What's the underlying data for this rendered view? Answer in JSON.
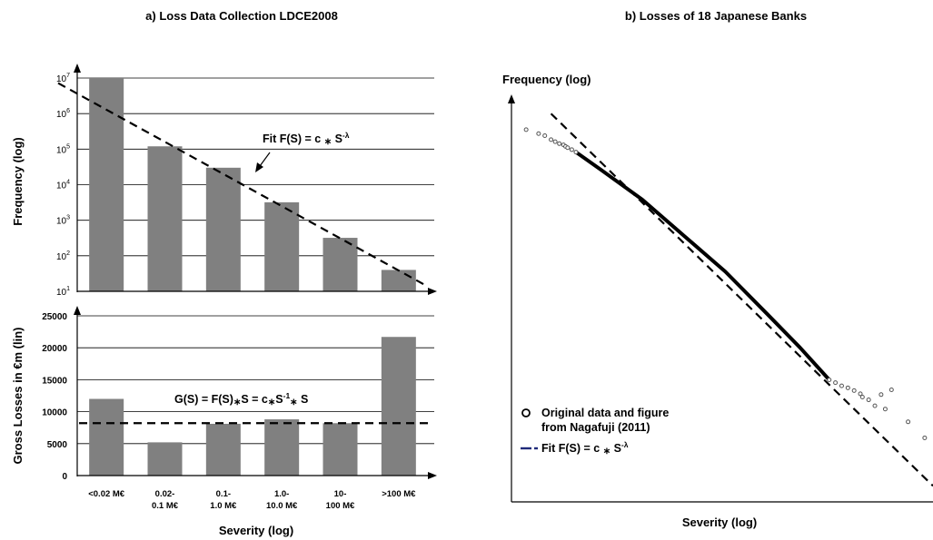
{
  "chart_data": [
    {
      "panel": "a",
      "title": "a) Loss Data Collection LDCE2008",
      "subplots": [
        {
          "type": "bar",
          "ylabel": "Frequency (log)",
          "yscale": "log",
          "ylim": [
            10,
            10000000
          ],
          "ytick_exponents": [
            "1",
            "2",
            "3",
            "4",
            "5",
            "6",
            "7"
          ],
          "categories": [
            "<0.02 M€",
            "0.02-0.1 M€",
            "0.1-1.0 M€",
            "1.0-10.0 M€",
            "10-100 M€",
            ">100 M€"
          ],
          "values": [
            10000000,
            120000,
            30000,
            3200,
            320,
            40
          ],
          "fit": {
            "label_main": "Fit F(S) = c ",
            "label_mid": " S",
            "label_sup": "-λ",
            "from": 7200000,
            "to": 15
          },
          "grid": true
        },
        {
          "type": "bar",
          "ylabel": "Gross Losses in €m (lin)",
          "yscale": "linear",
          "ylim": [
            0,
            25000
          ],
          "yticks": [
            "0",
            "5000",
            "10000",
            "15000",
            "20000",
            "25000"
          ],
          "categories": [
            "<0.02 M€",
            "0.02-0.1 M€",
            "0.1-1.0 M€",
            "1.0-10.0 M€",
            "10-100 M€",
            ">100 M€"
          ],
          "values": [
            12000,
            5200,
            8100,
            8800,
            8200,
            21700
          ],
          "fit": {
            "label_main": "G(S) = F(S)",
            "label_mid": "S = c",
            "label_sup": "-1",
            "label_end": " S",
            "level": 8200
          },
          "grid": true
        }
      ],
      "category_lines": [
        [
          "<0.02 M€",
          ""
        ],
        [
          "0.02-",
          "0.1 M€"
        ],
        [
          "0.1-",
          "1.0 M€"
        ],
        [
          "1.0-",
          "10.0 M€"
        ],
        [
          "10-",
          "100 M€"
        ],
        [
          ">100 M€",
          ""
        ]
      ],
      "xlabel": "Severity (log)"
    },
    {
      "panel": "b",
      "type": "scatter",
      "title": "b) Losses of 18 Japanese Banks",
      "ylabel": "Frequency (log)",
      "xlabel": "Severity (log)",
      "legend": {
        "position": "bottom-left",
        "entries": [
          {
            "marker": "o",
            "line1": "Original data and figure",
            "line2": "from Nagafuji (2011)"
          },
          {
            "marker": "--",
            "label_main": "Fit F(S) = c ",
            "label_mid": " S",
            "label_sup": "-λ"
          }
        ]
      },
      "points": [
        [
          0.02,
          0.93
        ],
        [
          0.05,
          0.92
        ],
        [
          0.065,
          0.915
        ],
        [
          0.08,
          0.905
        ],
        [
          0.09,
          0.9
        ],
        [
          0.1,
          0.895
        ],
        [
          0.11,
          0.892
        ],
        [
          0.115,
          0.888
        ],
        [
          0.12,
          0.885
        ],
        [
          0.13,
          0.88
        ],
        [
          0.14,
          0.874
        ],
        [
          0.75,
          0.305
        ],
        [
          0.765,
          0.298
        ],
        [
          0.78,
          0.29
        ],
        [
          0.795,
          0.285
        ],
        [
          0.81,
          0.278
        ],
        [
          0.825,
          0.27
        ],
        [
          0.83,
          0.262
        ],
        [
          0.845,
          0.255
        ],
        [
          0.86,
          0.24
        ],
        [
          0.875,
          0.268
        ],
        [
          0.885,
          0.232
        ],
        [
          0.9,
          0.28
        ],
        [
          0.94,
          0.2
        ],
        [
          0.98,
          0.16
        ]
      ],
      "curve": [
        [
          0.14,
          0.874
        ],
        [
          0.2,
          0.83
        ],
        [
          0.3,
          0.755
        ],
        [
          0.4,
          0.665
        ],
        [
          0.5,
          0.575
        ],
        [
          0.6,
          0.47
        ],
        [
          0.68,
          0.385
        ],
        [
          0.75,
          0.305
        ]
      ],
      "fit": [
        [
          0.08,
          0.97
        ],
        [
          1.0,
          0.04
        ]
      ]
    }
  ]
}
